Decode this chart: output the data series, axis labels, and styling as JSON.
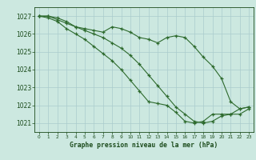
{
  "line1_x": [
    0,
    1,
    2,
    3,
    4,
    5,
    6,
    7,
    8,
    9,
    10,
    11,
    12,
    13,
    14,
    15,
    16,
    17,
    18,
    19,
    20,
    21,
    22,
    23
  ],
  "line1_y": [
    1027.0,
    1027.0,
    1026.8,
    1026.6,
    1026.4,
    1026.3,
    1026.2,
    1026.1,
    1026.4,
    1026.3,
    1026.1,
    1025.8,
    1025.7,
    1025.5,
    1025.8,
    1025.9,
    1025.8,
    1025.3,
    1024.7,
    1024.2,
    1023.5,
    1022.2,
    1021.8,
    1021.9
  ],
  "line2_x": [
    0,
    1,
    2,
    3,
    4,
    5,
    6,
    7,
    8,
    9,
    10,
    11,
    12,
    13,
    14,
    15,
    16,
    17,
    18,
    19,
    20,
    21,
    22,
    23
  ],
  "line2_y": [
    1027.0,
    1027.0,
    1026.9,
    1026.7,
    1026.4,
    1026.2,
    1026.0,
    1025.8,
    1025.5,
    1025.2,
    1024.8,
    1024.3,
    1023.7,
    1023.1,
    1022.5,
    1021.9,
    1021.5,
    1021.1,
    1021.0,
    1021.1,
    1021.4,
    1021.5,
    1021.5,
    1021.8
  ],
  "line3_x": [
    0,
    1,
    2,
    3,
    4,
    5,
    6,
    7,
    8,
    9,
    10,
    11,
    12,
    13,
    14,
    15,
    16,
    17,
    18,
    19,
    20,
    21,
    22,
    23
  ],
  "line3_y": [
    1027.0,
    1026.9,
    1026.7,
    1026.3,
    1026.0,
    1025.7,
    1025.3,
    1024.9,
    1024.5,
    1024.0,
    1023.4,
    1022.8,
    1022.2,
    1022.1,
    1022.0,
    1021.6,
    1021.1,
    1021.0,
    1021.1,
    1021.5,
    1021.5,
    1021.5,
    1021.8,
    1021.9
  ],
  "line_color": "#2d6a2d",
  "bg_color": "#cce8e0",
  "grid_color": "#aacccc",
  "title": "Graphe pression niveau de la mer (hPa)",
  "title_color": "#1a4a1a",
  "ylim": [
    1020.5,
    1027.5
  ],
  "xlim": [
    -0.5,
    23.5
  ],
  "yticks": [
    1021,
    1022,
    1023,
    1024,
    1025,
    1026,
    1027
  ],
  "xticks": [
    0,
    1,
    2,
    3,
    4,
    5,
    6,
    7,
    8,
    9,
    10,
    11,
    12,
    13,
    14,
    15,
    16,
    17,
    18,
    19,
    20,
    21,
    22,
    23
  ]
}
